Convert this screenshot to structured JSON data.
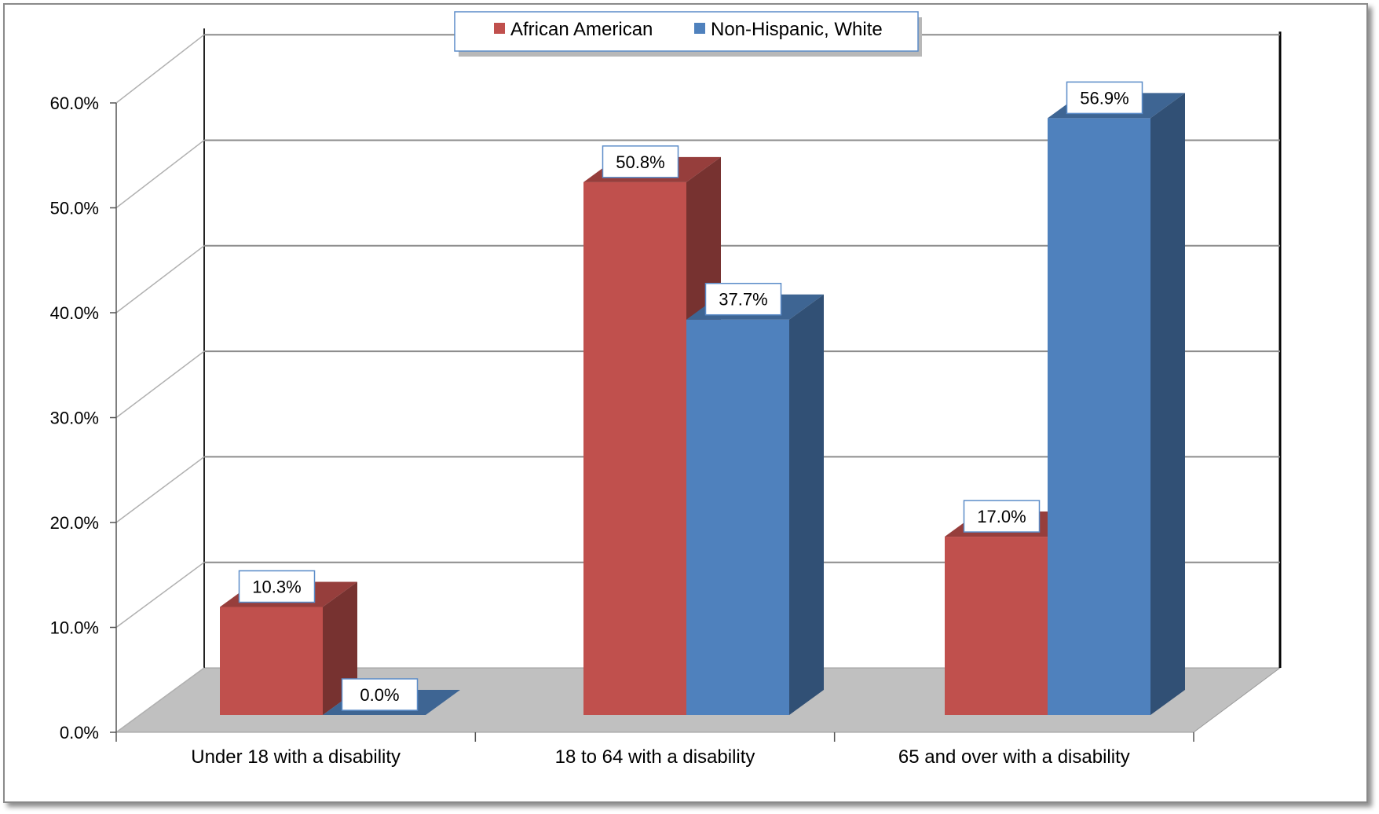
{
  "chart_data": {
    "type": "bar",
    "categories": [
      "Under 18 with a disability",
      "18 to 64 with a disability",
      "65 and over with a disability"
    ],
    "series": [
      {
        "name": "African American",
        "values": [
          10.3,
          50.8,
          17.0
        ],
        "labels": [
          "10.3%",
          "50.8%",
          "17.0%"
        ],
        "color": "#c0504d"
      },
      {
        "name": "Non-Hispanic, White",
        "values": [
          0.0,
          37.7,
          56.9
        ],
        "labels": [
          "0.0%",
          "37.7%",
          "56.9%"
        ],
        "color": "#4f81bd"
      }
    ],
    "y_ticks": [
      "0.0%",
      "10.0%",
      "20.0%",
      "30.0%",
      "40.0%",
      "50.0%",
      "60.0%"
    ],
    "ylim": [
      0,
      60
    ],
    "grid": true,
    "legend_position": "top",
    "three_d": true
  }
}
